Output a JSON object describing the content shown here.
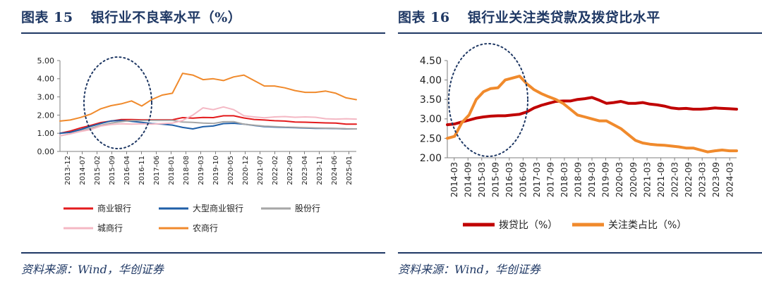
{
  "left": {
    "title_prefix": "图表",
    "title_number": "15",
    "title_text": "银行业不良率水平（%）",
    "source": "资料来源：Wind，华创证券"
  },
  "right": {
    "title_prefix": "图表",
    "title_number": "16",
    "title_text": "银行业关注类贷款及拨贷比水平",
    "source": "资料来源：Wind，华创证券"
  },
  "chart_data": [
    {
      "type": "line",
      "title": "银行业不良率水平（%）",
      "ylim": [
        0,
        5
      ],
      "y_ticks": [
        "0.00",
        "1.00",
        "2.00",
        "3.00",
        "4.00",
        "5.00"
      ],
      "x_tick_labels": [
        "2013-12",
        "2014-07",
        "2015-02",
        "2015-09",
        "2016-04",
        "2016-11",
        "2017-06",
        "2018-01",
        "2018-08",
        "2019-03",
        "2019-10",
        "2020-05",
        "2020-12",
        "2021-07",
        "2022-02",
        "2022-09",
        "2023-04",
        "2023-11",
        "2024-06",
        "2025-01"
      ],
      "legend_placement": "bottom",
      "grid": false,
      "annotation": "dotted ellipse around 2015-2016",
      "series": [
        {
          "name": "商业银行",
          "color": "#e31a1c",
          "values": [
            1.0,
            1.12,
            1.29,
            1.43,
            1.59,
            1.67,
            1.75,
            1.75,
            1.74,
            1.74,
            1.74,
            1.74,
            1.86,
            1.83,
            1.87,
            1.86,
            1.96,
            1.96,
            1.84,
            1.76,
            1.73,
            1.69,
            1.67,
            1.62,
            1.61,
            1.59,
            1.57,
            1.56,
            1.5,
            1.5
          ]
        },
        {
          "name": "大型商业银行",
          "color": "#1f5fa8",
          "values": [
            1.0,
            1.05,
            1.2,
            1.38,
            1.54,
            1.68,
            1.7,
            1.66,
            1.6,
            1.53,
            1.5,
            1.45,
            1.32,
            1.24,
            1.36,
            1.4,
            1.53,
            1.55,
            1.5,
            1.43,
            1.37,
            1.34,
            1.32,
            1.31,
            1.29,
            1.27,
            1.27,
            1.26,
            1.24,
            1.24
          ]
        },
        {
          "name": "股份行",
          "color": "#a6a6a6",
          "values": [
            0.86,
            0.97,
            1.12,
            1.27,
            1.44,
            1.56,
            1.64,
            1.7,
            1.7,
            1.71,
            1.71,
            1.71,
            1.62,
            1.6,
            1.56,
            1.54,
            1.63,
            1.64,
            1.5,
            1.44,
            1.39,
            1.37,
            1.34,
            1.33,
            1.31,
            1.29,
            1.28,
            1.27,
            1.25,
            1.24
          ]
        },
        {
          "name": "城商行",
          "color": "#f4b8c4",
          "values": [
            0.86,
            0.97,
            1.1,
            1.2,
            1.4,
            1.48,
            1.52,
            1.5,
            1.52,
            1.5,
            1.53,
            1.56,
            1.7,
            2.0,
            2.4,
            2.3,
            2.45,
            2.3,
            1.96,
            1.9,
            1.85,
            1.9,
            1.92,
            1.88,
            1.9,
            1.88,
            1.8,
            1.78,
            1.8,
            1.78
          ]
        },
        {
          "name": "农商行",
          "color": "#f08a2c",
          "values": [
            1.67,
            1.73,
            1.87,
            2.05,
            2.35,
            2.52,
            2.62,
            2.78,
            2.5,
            2.86,
            3.1,
            3.2,
            4.3,
            4.2,
            3.95,
            4.0,
            3.9,
            4.1,
            4.2,
            3.9,
            3.6,
            3.6,
            3.5,
            3.35,
            3.25,
            3.25,
            3.32,
            3.2,
            2.95,
            2.85
          ]
        }
      ]
    },
    {
      "type": "line",
      "title": "银行业关注类贷款及拨贷比水平",
      "ylim": [
        2.0,
        4.5
      ],
      "y_ticks": [
        "2.00",
        "2.50",
        "3.00",
        "3.50",
        "4.00",
        "4.50"
      ],
      "x_tick_labels": [
        "2014-03",
        "2014-09",
        "2015-03",
        "2015-09",
        "2016-03",
        "2016-09",
        "2017-03",
        "2017-09",
        "2018-03",
        "2018-09",
        "2019-03",
        "2019-09",
        "2020-03",
        "2020-09",
        "2021-03",
        "2021-09",
        "2022-03",
        "2022-09",
        "2023-03",
        "2023-09",
        "2024-03"
      ],
      "legend_placement": "bottom",
      "grid": false,
      "annotation": "dotted ellipse around 2015-2016",
      "series": [
        {
          "name": "拨贷比（%）",
          "color": "#c00000",
          "values": [
            2.85,
            2.87,
            2.92,
            2.97,
            3.02,
            3.05,
            3.07,
            3.08,
            3.08,
            3.1,
            3.12,
            3.18,
            3.28,
            3.35,
            3.4,
            3.45,
            3.46,
            3.46,
            3.5,
            3.52,
            3.55,
            3.48,
            3.4,
            3.42,
            3.45,
            3.4,
            3.4,
            3.42,
            3.38,
            3.36,
            3.33,
            3.28,
            3.26,
            3.27,
            3.25,
            3.25,
            3.26,
            3.28,
            3.27,
            3.26,
            3.25
          ]
        },
        {
          "name": "关注类占比（%）",
          "color": "#f08a2c",
          "values": [
            2.5,
            2.55,
            2.9,
            3.1,
            3.5,
            3.7,
            3.78,
            3.8,
            4.0,
            4.05,
            4.1,
            3.9,
            3.75,
            3.65,
            3.57,
            3.5,
            3.4,
            3.25,
            3.1,
            3.05,
            3.0,
            2.95,
            2.95,
            2.85,
            2.75,
            2.6,
            2.45,
            2.38,
            2.35,
            2.33,
            2.32,
            2.3,
            2.28,
            2.25,
            2.25,
            2.2,
            2.15,
            2.18,
            2.2,
            2.18,
            2.18
          ]
        }
      ]
    }
  ]
}
